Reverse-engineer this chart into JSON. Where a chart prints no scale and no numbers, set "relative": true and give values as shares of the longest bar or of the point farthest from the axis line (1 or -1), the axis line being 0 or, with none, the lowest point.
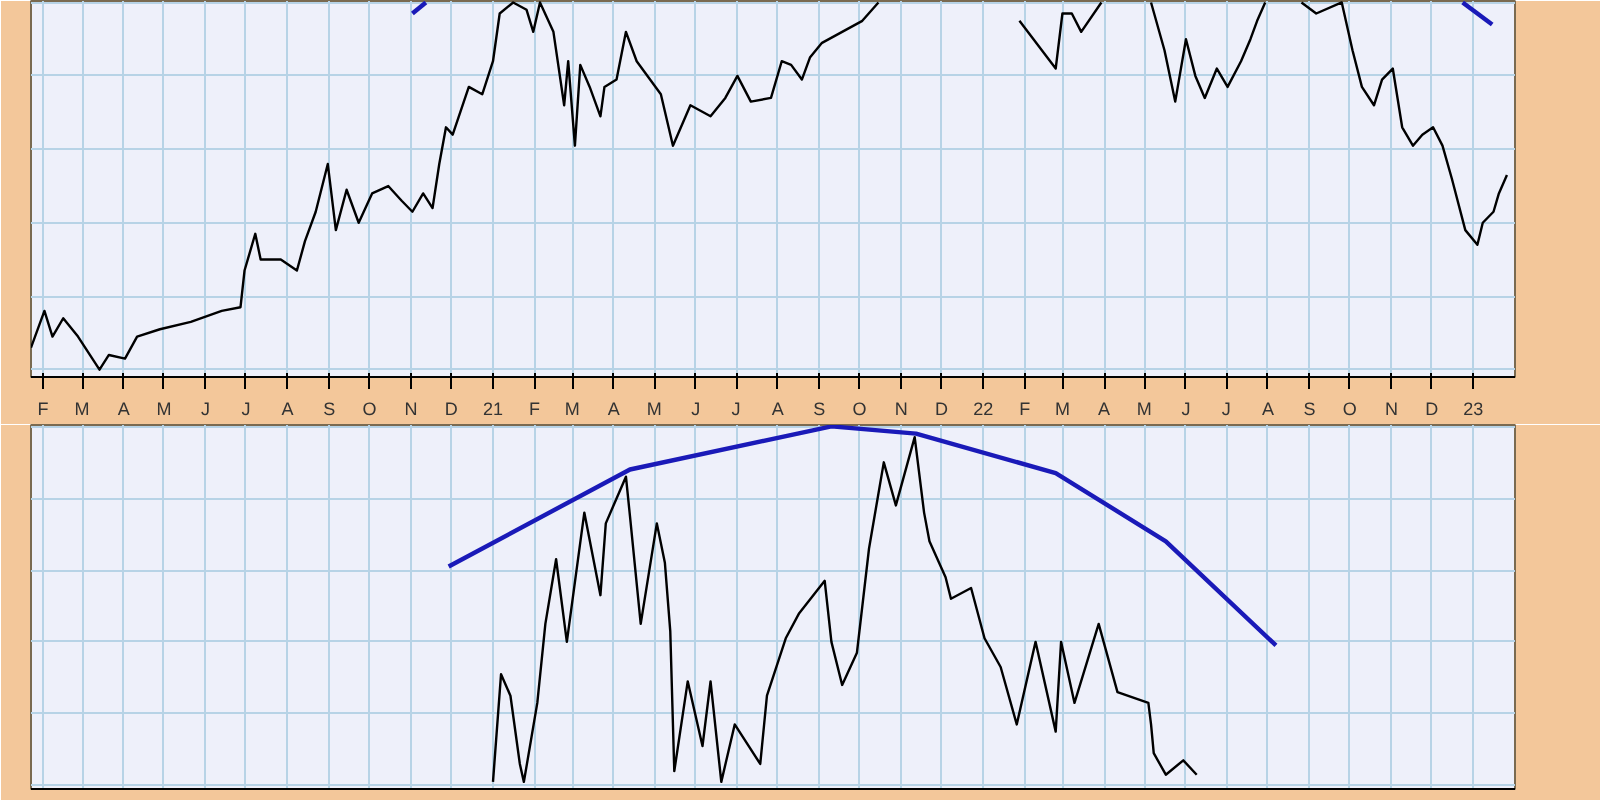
{
  "chart_data": [
    {
      "type": "line",
      "relative": true,
      "grid": true,
      "tick_labels": "x",
      "xlim": [
        "2020-01-23",
        "2023-02-01"
      ],
      "xticks": [
        {
          "value": "2020-02-01",
          "label": "F"
        },
        {
          "value": "2020-03-01",
          "label": "M"
        },
        {
          "value": "2020-04-01",
          "label": "A"
        },
        {
          "value": "2020-05-01",
          "label": "M"
        },
        {
          "value": "2020-06-01",
          "label": "J"
        },
        {
          "value": "2020-07-01",
          "label": "J"
        },
        {
          "value": "2020-08-01",
          "label": "A"
        },
        {
          "value": "2020-09-01",
          "label": "S"
        },
        {
          "value": "2020-10-01",
          "label": "O"
        },
        {
          "value": "2020-11-01",
          "label": "N"
        },
        {
          "value": "2020-12-01",
          "label": "D"
        },
        {
          "value": "2021-01-01",
          "label": "21"
        },
        {
          "value": "2021-02-01",
          "label": "F"
        },
        {
          "value": "2021-03-01",
          "label": "M"
        },
        {
          "value": "2021-04-01",
          "label": "A"
        },
        {
          "value": "2021-05-01",
          "label": "M"
        },
        {
          "value": "2021-06-01",
          "label": "J"
        },
        {
          "value": "2021-07-01",
          "label": "J"
        },
        {
          "value": "2021-08-01",
          "label": "A"
        },
        {
          "value": "2021-09-01",
          "label": "S"
        },
        {
          "value": "2021-10-01",
          "label": "O"
        },
        {
          "value": "2021-11-01",
          "label": "N"
        },
        {
          "value": "2021-12-01",
          "label": "D"
        },
        {
          "value": "2022-01-01",
          "label": "22"
        },
        {
          "value": "2022-02-01",
          "label": "F"
        },
        {
          "value": "2022-03-01",
          "label": "M"
        },
        {
          "value": "2022-04-01",
          "label": "A"
        },
        {
          "value": "2022-05-01",
          "label": "M"
        },
        {
          "value": "2022-06-01",
          "label": "J"
        },
        {
          "value": "2022-07-01",
          "label": "J"
        },
        {
          "value": "2022-08-01",
          "label": "A"
        },
        {
          "value": "2022-09-01",
          "label": "S"
        },
        {
          "value": "2022-10-01",
          "label": "O"
        },
        {
          "value": "2022-11-01",
          "label": "N"
        },
        {
          "value": "2022-12-01",
          "label": "D"
        },
        {
          "value": "2023-01-01",
          "label": "23"
        }
      ],
      "series": [
        {
          "color": "#000000",
          "x": [
            "2020-01-23",
            "2020-02-02",
            "2020-02-08",
            "2020-02-16",
            "2020-02-27",
            "2020-03-14",
            "2020-03-21",
            "2020-04-02",
            "2020-04-11",
            "2020-04-28",
            "2020-05-21",
            "2020-06-13",
            "2020-06-27",
            "2020-06-30",
            "2020-07-08",
            "2020-07-12",
            "2020-07-27",
            "2020-08-08",
            "2020-08-14",
            "2020-08-22",
            "2020-08-31",
            "2020-09-06",
            "2020-09-14",
            "2020-09-23",
            "2020-10-03",
            "2020-10-15",
            "2020-10-25",
            "2020-11-02",
            "2020-11-10",
            "2020-11-17",
            "2020-11-22",
            "2020-11-27",
            "2020-12-02",
            "2020-12-14",
            "2020-12-24",
            "2021-01-01",
            "2021-01-06",
            "2021-01-16",
            "2021-01-26",
            "2021-01-31",
            "2021-02-05",
            "2021-02-15",
            "2021-02-23",
            "2021-02-26",
            "2021-03-03",
            "2021-03-07",
            "2021-03-14",
            "2021-03-22",
            "2021-03-25",
            "2021-04-03",
            "2021-04-10",
            "2021-04-18",
            "2021-05-06",
            "2021-05-15",
            "2021-05-28",
            "2021-06-12",
            "2021-06-23",
            "2021-07-02",
            "2021-07-12",
            "2021-07-27",
            "2021-08-04",
            "2021-08-11",
            "2021-08-19",
            "2021-08-25",
            "2021-09-03",
            "2021-09-18",
            "2021-10-03",
            "2021-10-15",
            "2021-12-02",
            "2022-01-28",
            "2022-02-24",
            "2022-03-01",
            "2022-03-08",
            "2022-03-15",
            "2022-03-30",
            "2022-04-17",
            "2022-05-06",
            "2022-05-16",
            "2022-05-24",
            "2022-06-01",
            "2022-06-08",
            "2022-06-15",
            "2022-06-24",
            "2022-07-02",
            "2022-07-12",
            "2022-07-19",
            "2022-07-24",
            "2022-07-30",
            "2022-08-13",
            "2022-08-26",
            "2022-09-06",
            "2022-09-25",
            "2022-10-03",
            "2022-10-10",
            "2022-10-19",
            "2022-10-25",
            "2022-11-02",
            "2022-11-09",
            "2022-11-17",
            "2022-11-24",
            "2022-12-02",
            "2022-12-09",
            "2022-12-16",
            "2022-12-26",
            "2023-01-04",
            "2023-01-08",
            "2023-01-16",
            "2023-01-20",
            "2023-01-26"
          ],
          "values": [
            0.06,
            0.16,
            0.09,
            0.14,
            0.09,
            0.0,
            0.04,
            0.03,
            0.09,
            0.11,
            0.13,
            0.16,
            0.17,
            0.27,
            0.37,
            0.3,
            0.3,
            0.27,
            0.35,
            0.43,
            0.56,
            0.38,
            0.49,
            0.4,
            0.48,
            0.5,
            0.46,
            0.43,
            0.48,
            0.44,
            0.56,
            0.66,
            0.64,
            0.77,
            0.75,
            0.84,
            0.97,
            1.0,
            0.98,
            0.92,
            1.0,
            0.92,
            0.72,
            0.84,
            0.61,
            0.83,
            0.77,
            0.69,
            0.77,
            0.79,
            0.92,
            0.84,
            0.75,
            0.61,
            0.72,
            0.69,
            0.74,
            0.8,
            0.73,
            0.74,
            0.84,
            0.83,
            0.79,
            0.85,
            0.89,
            0.92,
            0.95,
            1.0,
            null,
            0.95,
            0.82,
            0.97,
            0.97,
            0.92,
            1.0,
            null,
            1.0,
            0.87,
            0.73,
            0.9,
            0.8,
            0.74,
            0.82,
            0.77,
            0.84,
            0.9,
            0.95,
            1.0,
            null,
            1.0,
            0.97,
            1.0,
            0.87,
            0.77,
            0.72,
            0.79,
            0.82,
            0.66,
            0.61,
            0.64,
            0.66,
            0.61,
            0.52,
            0.38,
            0.34,
            0.4,
            0.43,
            0.48,
            0.53
          ]
        },
        {
          "color": "#1a1ab8",
          "x": [
            "2020-11-02",
            "2020-11-12"
          ],
          "values": [
            0.97,
            1.0
          ]
        },
        {
          "color": "#1a1ab8",
          "x": [
            "2022-12-24",
            "2023-01-15"
          ],
          "values": [
            1.0,
            0.94
          ]
        }
      ]
    },
    {
      "type": "line",
      "relative": true,
      "grid": true,
      "tick_labels": false,
      "xlim": [
        "2020-01-23",
        "2023-02-01"
      ],
      "xticks": [
        {
          "value": "2020-02-01",
          "label": null
        },
        {
          "value": "2020-03-01",
          "label": null
        },
        {
          "value": "2020-04-01",
          "label": null
        },
        {
          "value": "2020-05-01",
          "label": null
        },
        {
          "value": "2020-06-01",
          "label": null
        },
        {
          "value": "2020-07-01",
          "label": null
        },
        {
          "value": "2020-08-01",
          "label": null
        },
        {
          "value": "2020-09-01",
          "label": null
        },
        {
          "value": "2020-10-01",
          "label": null
        },
        {
          "value": "2020-11-01",
          "label": null
        },
        {
          "value": "2020-12-01",
          "label": null
        },
        {
          "value": "2021-01-01",
          "label": null
        },
        {
          "value": "2021-02-01",
          "label": null
        },
        {
          "value": "2021-03-01",
          "label": null
        },
        {
          "value": "2021-04-01",
          "label": null
        },
        {
          "value": "2021-05-01",
          "label": null
        },
        {
          "value": "2021-06-01",
          "label": null
        },
        {
          "value": "2021-07-01",
          "label": null
        },
        {
          "value": "2021-08-01",
          "label": null
        },
        {
          "value": "2021-09-01",
          "label": null
        },
        {
          "value": "2021-10-01",
          "label": null
        },
        {
          "value": "2021-11-01",
          "label": null
        },
        {
          "value": "2021-12-01",
          "label": null
        },
        {
          "value": "2022-01-01",
          "label": null
        },
        {
          "value": "2022-02-01",
          "label": null
        },
        {
          "value": "2022-03-01",
          "label": null
        },
        {
          "value": "2022-04-01",
          "label": null
        },
        {
          "value": "2022-05-01",
          "label": null
        },
        {
          "value": "2022-06-01",
          "label": null
        },
        {
          "value": "2022-07-01",
          "label": null
        },
        {
          "value": "2022-08-01",
          "label": null
        },
        {
          "value": "2022-09-01",
          "label": null
        },
        {
          "value": "2022-10-01",
          "label": null
        },
        {
          "value": "2022-11-01",
          "label": null
        },
        {
          "value": "2022-12-01",
          "label": null
        },
        {
          "value": "2023-01-01",
          "label": null
        }
      ],
      "series": [
        {
          "color": "#000000",
          "x": [
            "2021-01-01",
            "2021-01-07",
            "2021-01-14",
            "2021-01-21",
            "2021-01-24",
            "2021-02-03",
            "2021-02-09",
            "2021-02-17",
            "2021-02-25",
            "2021-03-10",
            "2021-03-22",
            "2021-03-26",
            "2021-04-10",
            "2021-04-13",
            "2021-04-21",
            "2021-05-03",
            "2021-05-09",
            "2021-05-13",
            "2021-05-16",
            "2021-05-26",
            "2021-06-06",
            "2021-06-12",
            "2021-06-20",
            "2021-06-30",
            "2021-07-19",
            "2021-07-24",
            "2021-08-07",
            "2021-08-17",
            "2021-09-05",
            "2021-09-10",
            "2021-09-18",
            "2021-09-29",
            "2021-10-08",
            "2021-10-19",
            "2021-10-28",
            "2021-11-11",
            "2021-11-18",
            "2021-11-22",
            "2021-12-04",
            "2021-12-08",
            "2021-12-23",
            "2022-01-02",
            "2022-01-14",
            "2022-01-26",
            "2022-02-09",
            "2022-02-24",
            "2022-02-28",
            "2022-03-10",
            "2022-03-28",
            "2022-04-11",
            "2022-05-04",
            "2022-05-06",
            "2022-05-08",
            "2022-05-17",
            "2022-05-30",
            "2022-06-09"
          ],
          "values": [
            0.01,
            0.31,
            0.25,
            0.06,
            0.01,
            0.23,
            0.45,
            0.63,
            0.4,
            0.76,
            0.53,
            0.73,
            0.86,
            0.75,
            0.45,
            0.73,
            0.62,
            0.43,
            0.04,
            0.29,
            0.11,
            0.29,
            0.01,
            0.17,
            0.06,
            0.25,
            0.41,
            0.48,
            0.57,
            0.4,
            0.28,
            0.37,
            0.66,
            0.9,
            0.78,
            0.97,
            0.76,
            0.68,
            0.58,
            0.52,
            0.55,
            0.41,
            0.33,
            0.17,
            0.4,
            0.15,
            0.4,
            0.23,
            0.45,
            0.26,
            0.23,
            0.17,
            0.09,
            0.03,
            0.07,
            0.03
          ]
        },
        {
          "color": "#1a1ab8",
          "x": [
            "2020-11-29",
            "2021-04-13",
            "2021-09-10",
            "2021-11-12",
            "2022-02-24",
            "2022-05-17",
            "2022-08-07"
          ],
          "values": [
            0.61,
            0.88,
            1.0,
            0.98,
            0.87,
            0.68,
            0.39
          ]
        }
      ]
    }
  ]
}
